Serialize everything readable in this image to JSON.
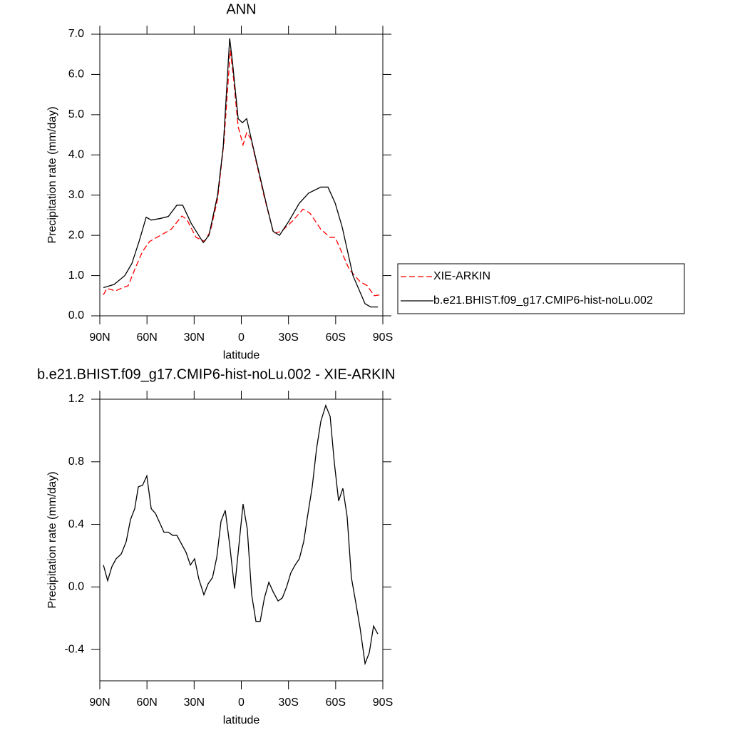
{
  "chart_data": [
    {
      "type": "line",
      "title": "ANN",
      "x_label": "latitude",
      "y_label": "Precipitation rate (mm/day)",
      "xlim": [
        90,
        -90
      ],
      "xticks": [
        {
          "value": 90,
          "label": "90N"
        },
        {
          "value": 60,
          "label": "60N"
        },
        {
          "value": 30,
          "label": "30N"
        },
        0,
        {
          "value": -30,
          "label": "30S"
        },
        {
          "value": -60,
          "label": "60S"
        },
        {
          "value": -90,
          "label": "90S"
        }
      ],
      "ylim": [
        0,
        7
      ],
      "yticks": [
        {
          "value": 0,
          "label": "0.0"
        },
        {
          "value": 1,
          "label": "1.0"
        },
        {
          "value": 2,
          "label": "2.0"
        },
        {
          "value": 3,
          "label": "3.0"
        },
        {
          "value": 4,
          "label": "4.0"
        },
        {
          "value": 5,
          "label": "5.0"
        },
        {
          "value": 6,
          "label": "6.0"
        },
        {
          "value": 7,
          "label": "7.0"
        }
      ],
      "legend": "right",
      "series": [
        {
          "name": "XIE-ARKIN",
          "color": "#ff0000",
          "line_style": "dashed",
          "x": [
            87.7,
            85.5,
            80.0,
            75.5,
            71.9,
            67.3,
            62.8,
            58.3,
            51.4,
            44.6,
            37.8,
            34.7,
            28.8,
            23.3,
            19.7,
            15.1,
            11.1,
            7.0,
            5.2,
            2.0,
            -1.1,
            -3.4,
            -6.1,
            -14.3,
            -20.6,
            -25.6,
            -32.4,
            -39.2,
            -43.7,
            -50.6,
            -56.5,
            -59.7,
            -68.7,
            -75.5,
            -80.0,
            -84.6,
            -88.2
          ],
          "values": [
            0.52,
            0.68,
            0.62,
            0.7,
            0.75,
            1.2,
            1.6,
            1.85,
            2.0,
            2.15,
            2.48,
            2.4,
            1.95,
            1.85,
            2.1,
            2.9,
            4.3,
            6.6,
            6.0,
            4.7,
            4.25,
            4.55,
            4.4,
            3.0,
            2.05,
            2.1,
            2.35,
            2.65,
            2.55,
            2.15,
            1.95,
            1.95,
            1.15,
            0.85,
            0.75,
            0.5,
            0.52
          ]
        },
        {
          "name": "b.e21.BHIST.f09_g17.CMIP6-hist-noLu.002",
          "color": "#000000",
          "line_style": "solid",
          "x": [
            87.7,
            80.9,
            74.1,
            69.6,
            65.0,
            60.5,
            57.3,
            51.4,
            46.4,
            41.0,
            37.3,
            31.9,
            24.2,
            20.6,
            15.1,
            11.5,
            7.4,
            5.6,
            2.0,
            -0.7,
            -3.4,
            -7.5,
            -15.2,
            -20.2,
            -24.3,
            -30.2,
            -36.9,
            -42.8,
            -50.6,
            -55.1,
            -59.7,
            -64.2,
            -71.0,
            -78.7,
            -82.3,
            -86.9
          ],
          "values": [
            0.7,
            0.78,
            1.0,
            1.3,
            1.85,
            2.45,
            2.38,
            2.42,
            2.47,
            2.75,
            2.75,
            2.3,
            1.82,
            2.0,
            3.0,
            4.2,
            6.9,
            6.3,
            4.9,
            4.8,
            4.9,
            4.2,
            2.9,
            2.1,
            2.0,
            2.35,
            2.8,
            3.05,
            3.2,
            3.2,
            2.8,
            2.2,
            1.0,
            0.3,
            0.22,
            0.22
          ]
        }
      ]
    },
    {
      "type": "line",
      "title": "b.e21.BHIST.f09_g17.CMIP6-hist-noLu.002 - XIE-ARKIN",
      "x_label": "latitude",
      "y_label": "Precipitation rate (mm/day)",
      "xlim": [
        90,
        -90
      ],
      "xticks": [
        {
          "value": 90,
          "label": "90N"
        },
        {
          "value": 60,
          "label": "60N"
        },
        {
          "value": 30,
          "label": "30N"
        },
        0,
        {
          "value": -30,
          "label": "30S"
        },
        {
          "value": -60,
          "label": "60S"
        },
        {
          "value": -90,
          "label": "90S"
        }
      ],
      "ylim": [
        -0.6,
        1.2
      ],
      "yticks": [
        -0.4,
        {
          "value": 0,
          "label": "0.0"
        },
        0.4,
        0.8,
        1.2
      ],
      "color": "#000000",
      "x": [
        87.7,
        85.0,
        82.3,
        79.6,
        76.4,
        73.2,
        70.5,
        67.8,
        65.5,
        62.8,
        60.1,
        57.3,
        54.6,
        51.9,
        49.2,
        46.4,
        43.7,
        41.0,
        38.3,
        35.1,
        32.4,
        29.7,
        27.0,
        23.8,
        21.1,
        18.3,
        15.6,
        12.9,
        10.2,
        7.4,
        4.3,
        1.6,
        -1.1,
        -3.8,
        -6.6,
        -9.3,
        -12.0,
        -14.7,
        -17.5,
        -20.2,
        -23.4,
        -26.1,
        -28.8,
        -31.5,
        -34.2,
        -36.9,
        -39.7,
        -42.4,
        -45.1,
        -47.8,
        -50.6,
        -53.7,
        -56.5,
        -59.2,
        -61.9,
        -64.6,
        -67.3,
        -70.0,
        -72.8,
        -75.5,
        -78.7,
        -81.4,
        -84.1,
        -86.8
      ],
      "values": [
        0.14,
        0.04,
        0.13,
        0.18,
        0.21,
        0.29,
        0.43,
        0.5,
        0.64,
        0.65,
        0.71,
        0.5,
        0.47,
        0.41,
        0.35,
        0.35,
        0.33,
        0.33,
        0.28,
        0.22,
        0.14,
        0.18,
        0.05,
        -0.05,
        0.02,
        0.06,
        0.19,
        0.42,
        0.49,
        0.27,
        -0.01,
        0.26,
        0.53,
        0.37,
        -0.05,
        -0.22,
        -0.22,
        -0.07,
        0.03,
        -0.03,
        -0.09,
        -0.07,
        0.0,
        0.09,
        0.14,
        0.18,
        0.29,
        0.47,
        0.64,
        0.88,
        1.06,
        1.16,
        1.09,
        0.79,
        0.55,
        0.63,
        0.45,
        0.06,
        -0.1,
        -0.26,
        -0.49,
        -0.42,
        -0.25,
        -0.3
      ]
    }
  ]
}
